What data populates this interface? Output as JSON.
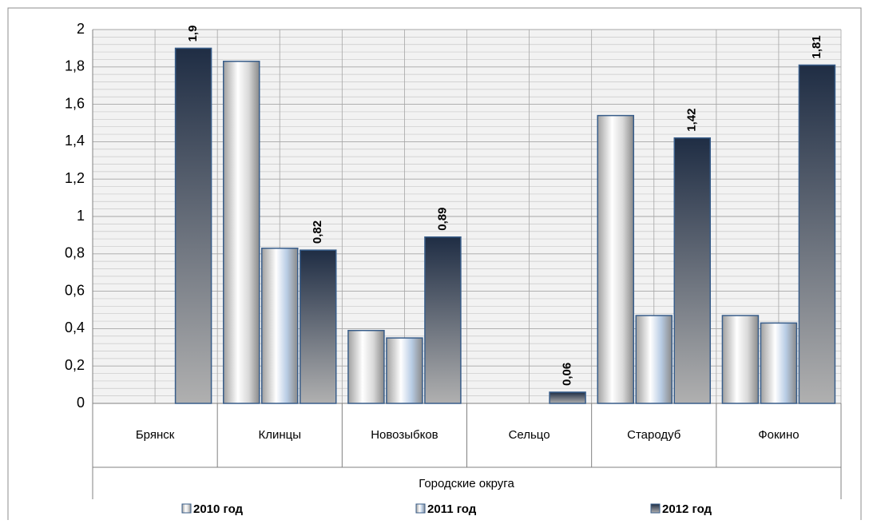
{
  "chart_data": {
    "type": "bar",
    "x_label": "Городские округа",
    "categories": [
      "Брянск",
      "Клинцы",
      "Новозыбков",
      "Сельцо",
      "Стародуб",
      "Фокино"
    ],
    "series": [
      {
        "name": "2010 год",
        "color": "#d9d9d9",
        "values": [
          null,
          1.83,
          0.39,
          null,
          1.54,
          0.47
        ]
      },
      {
        "name": "2011 год",
        "color": "#b8cce4",
        "values": [
          null,
          0.83,
          0.35,
          null,
          0.47,
          0.43
        ]
      },
      {
        "name": "2012 год",
        "color": "#1f2d44",
        "values": [
          1.9,
          0.82,
          0.89,
          0.06,
          1.42,
          1.81
        ],
        "value_labels": [
          "1,9",
          "0,82",
          "0,89",
          "0,06",
          "1,42",
          "1,81"
        ]
      }
    ],
    "ylim": [
      0,
      2
    ],
    "yticks": [
      0,
      {
        "value": 0.2,
        "label": "0,2"
      },
      {
        "value": 0.4,
        "label": "0,4"
      },
      {
        "value": 0.6,
        "label": "0,6"
      },
      {
        "value": 0.8,
        "label": "0,8"
      },
      1,
      {
        "value": 1.2,
        "label": "1,2"
      },
      {
        "value": 1.4,
        "label": "1,4"
      },
      {
        "value": 1.6,
        "label": "1,6"
      },
      {
        "value": 1.8,
        "label": "1,8"
      },
      2
    ],
    "grid": true,
    "legend": "bottom"
  }
}
